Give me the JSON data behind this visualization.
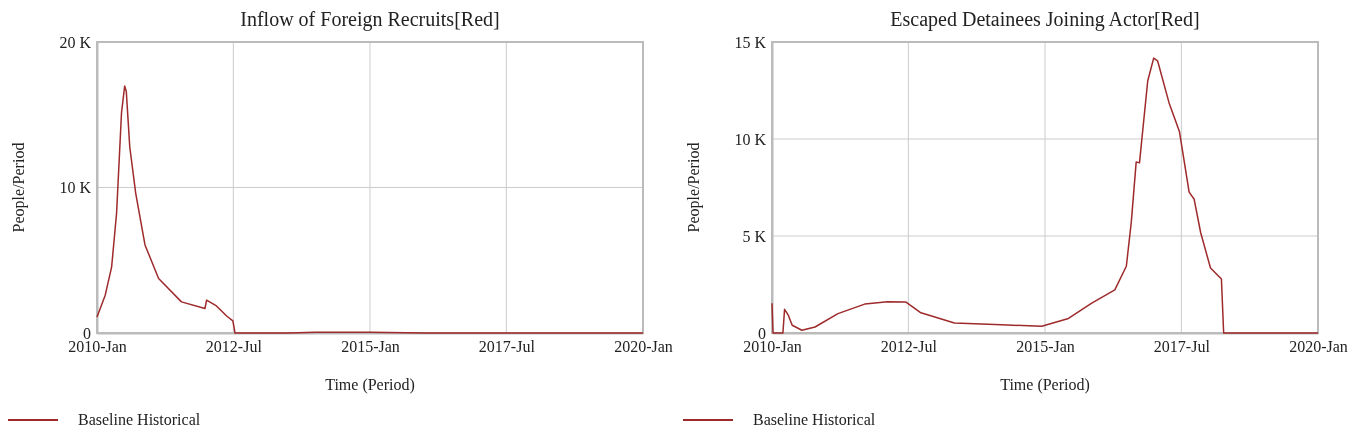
{
  "chart_data": [
    {
      "type": "line",
      "title": "Inflow of Foreign Recruits[Red]",
      "xlabel": "Time (Period)",
      "ylabel": "People/Period",
      "xlim": [
        "2010-01",
        "2020-01"
      ],
      "xticks": [
        {
          "value": "2010-01",
          "label": "2010-Jan"
        },
        {
          "value": "2012-07",
          "label": "2012-Jul"
        },
        {
          "value": "2015-01",
          "label": "2015-Jan"
        },
        {
          "value": "2017-07",
          "label": "2017-Jul"
        },
        {
          "value": "2020-01",
          "label": "2020-Jan"
        }
      ],
      "ylim": [
        0,
        20000
      ],
      "yticks": [
        {
          "value": 0,
          "label": "0"
        },
        {
          "value": 10000,
          "label": "10 K"
        },
        {
          "value": 20000,
          "label": "20 K"
        }
      ],
      "grid": true,
      "legend": "bottom",
      "series": [
        {
          "name": "Baseline Historical",
          "color": "#9e2a2b",
          "x": [
            "2010-01-01",
            "2010-02-25",
            "2010-04-09",
            "2010-05-12",
            "2010-06-14",
            "2010-07-05",
            "2010-07-16",
            "2010-08-08",
            "2010-09-17",
            "2010-11-18",
            "2011-02-17",
            "2011-07-20",
            "2011-12-24",
            "2012-01-04",
            "2012-03-10",
            "2012-05-19",
            "2012-06-28",
            "2012-07-12",
            "2013-07-01",
            "2014-01-01",
            "2015-01-01",
            "2016-01-01",
            "2017-01-01",
            "2020-01-01"
          ],
          "values": [
            1100,
            2600,
            4550,
            8250,
            15150,
            16970,
            16600,
            12800,
            9600,
            6050,
            3750,
            2140,
            1680,
            2260,
            1860,
            1150,
            830,
            0,
            0,
            50,
            50,
            0,
            0,
            0
          ]
        }
      ]
    },
    {
      "type": "line",
      "title": "Escaped Detainees Joining Actor[Red]",
      "xlabel": "Time (Period)",
      "ylabel": "People/Period",
      "xlim": [
        "2010-01",
        "2020-01"
      ],
      "xticks": [
        {
          "value": "2010-01",
          "label": "2010-Jan"
        },
        {
          "value": "2012-07",
          "label": "2012-Jul"
        },
        {
          "value": "2015-01",
          "label": "2015-Jan"
        },
        {
          "value": "2017-07",
          "label": "2017-Jul"
        },
        {
          "value": "2020-01",
          "label": "2020-Jan"
        }
      ],
      "ylim": [
        0,
        15000
      ],
      "yticks": [
        {
          "value": 0,
          "label": "0"
        },
        {
          "value": 5000,
          "label": "5 K"
        },
        {
          "value": 10000,
          "label": "10 K"
        },
        {
          "value": 15000,
          "label": "15 K"
        }
      ],
      "grid": true,
      "legend": "bottom",
      "series": [
        {
          "name": "Baseline Historical",
          "color": "#9e2a2b",
          "x": [
            "2010-01-01",
            "2010-01-08",
            "2010-03-15",
            "2010-03-26",
            "2010-04-20",
            "2010-05-16",
            "2010-07-20",
            "2010-10-16",
            "2011-03-18",
            "2011-09-13",
            "2012-02-14",
            "2012-06-13",
            "2012-09-23",
            "2013-05-05",
            "2014-03-15",
            "2014-12-10",
            "2015-06-07",
            "2015-11-07",
            "2016-04-12",
            "2016-06-28",
            "2016-07-31",
            "2016-09-02",
            "2016-09-24",
            "2016-11-18",
            "2016-12-28",
            "2017-01-23",
            "2017-04-10",
            "2017-06-18",
            "2017-08-22",
            "2017-09-24",
            "2017-11-07",
            "2018-01-12",
            "2018-03-26",
            "2018-04-10",
            "2020-01-01"
          ],
          "values": [
            1530,
            0,
            0,
            1220,
            920,
            400,
            140,
            310,
            1000,
            1490,
            1610,
            1600,
            1040,
            520,
            420,
            350,
            750,
            1530,
            2220,
            3440,
            5700,
            8820,
            8770,
            12990,
            14170,
            14030,
            11860,
            10390,
            7260,
            6910,
            5180,
            3350,
            2780,
            0,
            0
          ]
        }
      ]
    }
  ]
}
